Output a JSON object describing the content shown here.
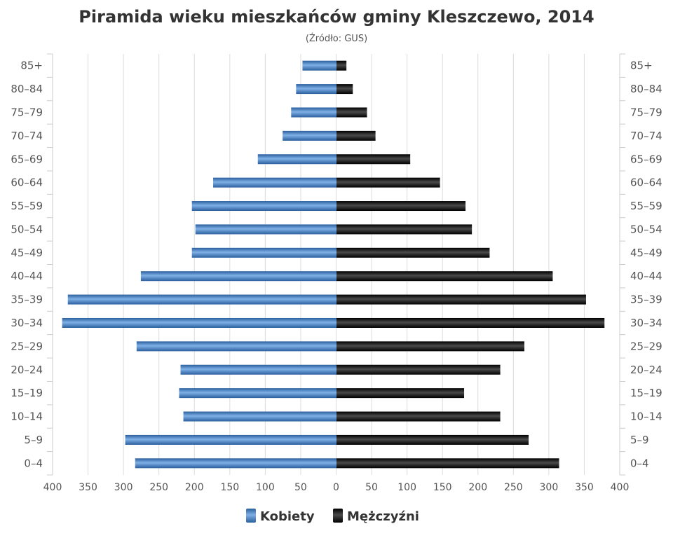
{
  "chart_data": {
    "type": "bar",
    "orientation": "horizontal-population-pyramid",
    "title": "Piramida wieku mieszkańców gminy Kleszczewo, 2014",
    "subtitle": "(Źródło: GUS)",
    "categories": [
      "0–4",
      "5–9",
      "10–14",
      "15–19",
      "20–24",
      "25–29",
      "30–34",
      "35–39",
      "40–44",
      "45–49",
      "50–54",
      "55–59",
      "60–64",
      "65–69",
      "70–74",
      "75–79",
      "80–84",
      "85+"
    ],
    "series": [
      {
        "name": "Kobiety",
        "side": "left",
        "color": "#3a78b8",
        "values": [
          284,
          298,
          216,
          222,
          220,
          282,
          387,
          379,
          276,
          204,
          199,
          204,
          174,
          111,
          76,
          64,
          57,
          48
        ]
      },
      {
        "name": "Mężczyźni",
        "side": "right",
        "color": "#1a1a1a",
        "values": [
          314,
          271,
          231,
          180,
          231,
          265,
          378,
          352,
          305,
          216,
          191,
          182,
          146,
          104,
          55,
          43,
          23,
          14
        ]
      }
    ],
    "xlim": [
      -400,
      400
    ],
    "x_tick_labels": [
      "400",
      "350",
      "300",
      "250",
      "200",
      "150",
      "100",
      "50",
      "0",
      "50",
      "100",
      "150",
      "200",
      "250",
      "300",
      "350",
      "400"
    ],
    "grid": true,
    "legend_position": "bottom-center"
  }
}
